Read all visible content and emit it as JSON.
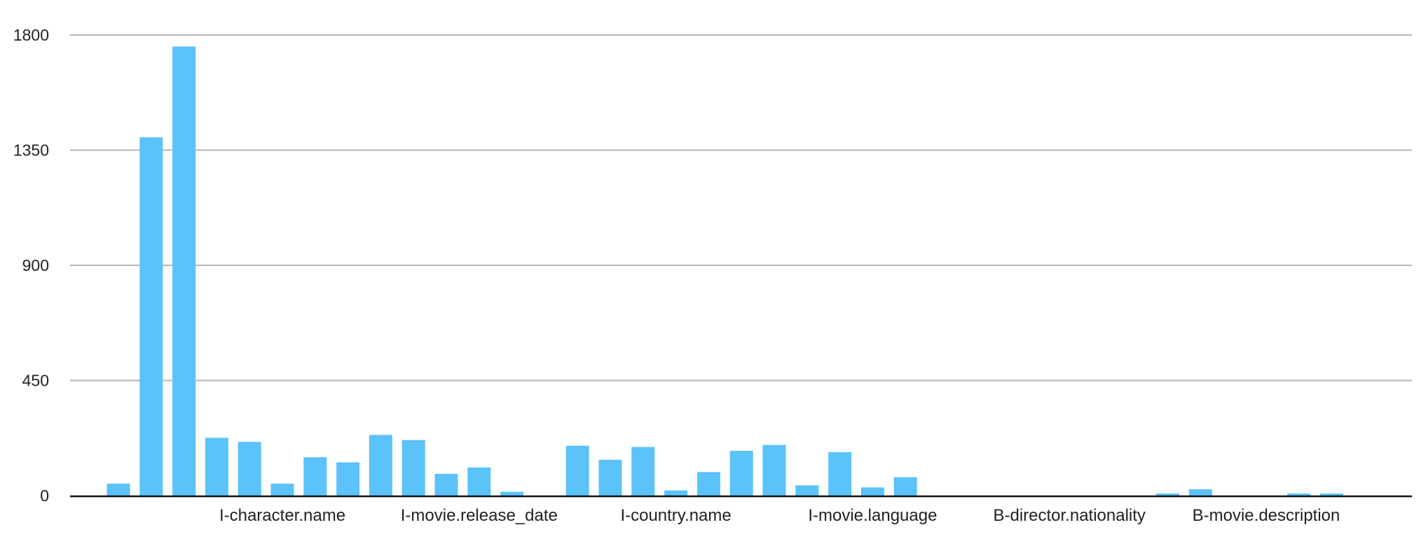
{
  "chart_data": {
    "type": "bar",
    "title": "",
    "xlabel": "",
    "ylabel": "",
    "ylim": [
      0,
      1800
    ],
    "yticks": [
      0,
      450,
      900,
      1350,
      1800
    ],
    "grid": true,
    "legend": "none",
    "bar_color": "#5bc2fa",
    "grid_color": "#b5b5b5",
    "axis_color": "#111111",
    "x_tick_labels": [
      {
        "index": 5,
        "label": "I-character.name"
      },
      {
        "index": 11,
        "label": "I-movie.release_date"
      },
      {
        "index": 17,
        "label": "I-country.name"
      },
      {
        "index": 23,
        "label": "I-movie.language"
      },
      {
        "index": 29,
        "label": "B-director.nationality"
      },
      {
        "index": 35,
        "label": "B-movie.description"
      }
    ],
    "categories": [
      "",
      "",
      "",
      "",
      "",
      "I-character.name",
      "",
      "",
      "",
      "",
      "",
      "I-movie.release_date",
      "",
      "",
      "",
      "",
      "",
      "I-country.name",
      "",
      "",
      "",
      "",
      "",
      "I-movie.language",
      "",
      "",
      "",
      "",
      "",
      "B-director.nationality",
      "",
      "",
      "",
      "",
      "",
      "B-movie.description",
      "",
      "",
      "",
      "",
      "",
      ""
    ],
    "values": [
      47,
      1400,
      1755,
      226,
      210,
      47,
      150,
      130,
      237,
      217,
      85,
      110,
      15,
      0,
      195,
      140,
      190,
      20,
      92,
      175,
      198,
      40,
      170,
      32,
      72,
      0,
      0,
      0,
      0,
      0,
      0,
      0,
      5,
      25,
      0,
      0,
      8,
      8,
      0,
      0,
      0,
      0
    ]
  }
}
